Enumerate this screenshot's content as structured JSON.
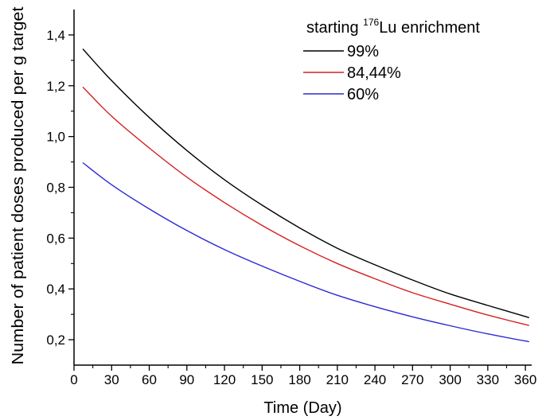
{
  "chart_data": {
    "type": "line",
    "xlabel": "Time (Day)",
    "ylabel": "Number of patient doses produced per g target",
    "xlim": [
      0,
      365
    ],
    "ylim": [
      0.1,
      1.5
    ],
    "xticks": [
      0,
      30,
      60,
      90,
      120,
      150,
      180,
      210,
      240,
      270,
      300,
      330,
      360
    ],
    "xtick_labels": [
      "0",
      "30",
      "60",
      "90",
      "120",
      "150",
      "180",
      "210",
      "240",
      "270",
      "300",
      "330",
      "360"
    ],
    "yticks": [
      0.2,
      0.4,
      0.6,
      0.8,
      1.0,
      1.2,
      1.4
    ],
    "ytick_labels": [
      "0,2",
      "0,4",
      "0,6",
      "0,8",
      "1,0",
      "1,2",
      "1,4"
    ],
    "grid": false,
    "legend": {
      "title_prefix": "starting ",
      "title_sup": "176",
      "title_suffix": "Lu enrichment",
      "placement": "top-right"
    },
    "x": [
      7,
      30,
      60,
      90,
      120,
      150,
      180,
      210,
      240,
      270,
      300,
      330,
      363
    ],
    "series": [
      {
        "name": "99%",
        "color": "#000000",
        "values": [
          1.345,
          1.22,
          1.075,
          0.945,
          0.83,
          0.73,
          0.64,
          0.56,
          0.495,
          0.435,
          0.38,
          0.335,
          0.287
        ]
      },
      {
        "name": "84,44%",
        "color": "#d42020",
        "values": [
          1.195,
          1.08,
          0.955,
          0.84,
          0.74,
          0.65,
          0.57,
          0.5,
          0.44,
          0.385,
          0.34,
          0.297,
          0.256
        ]
      },
      {
        "name": "60%",
        "color": "#2a2ad4",
        "values": [
          0.897,
          0.81,
          0.715,
          0.63,
          0.555,
          0.49,
          0.43,
          0.375,
          0.33,
          0.29,
          0.255,
          0.223,
          0.192
        ]
      }
    ]
  }
}
